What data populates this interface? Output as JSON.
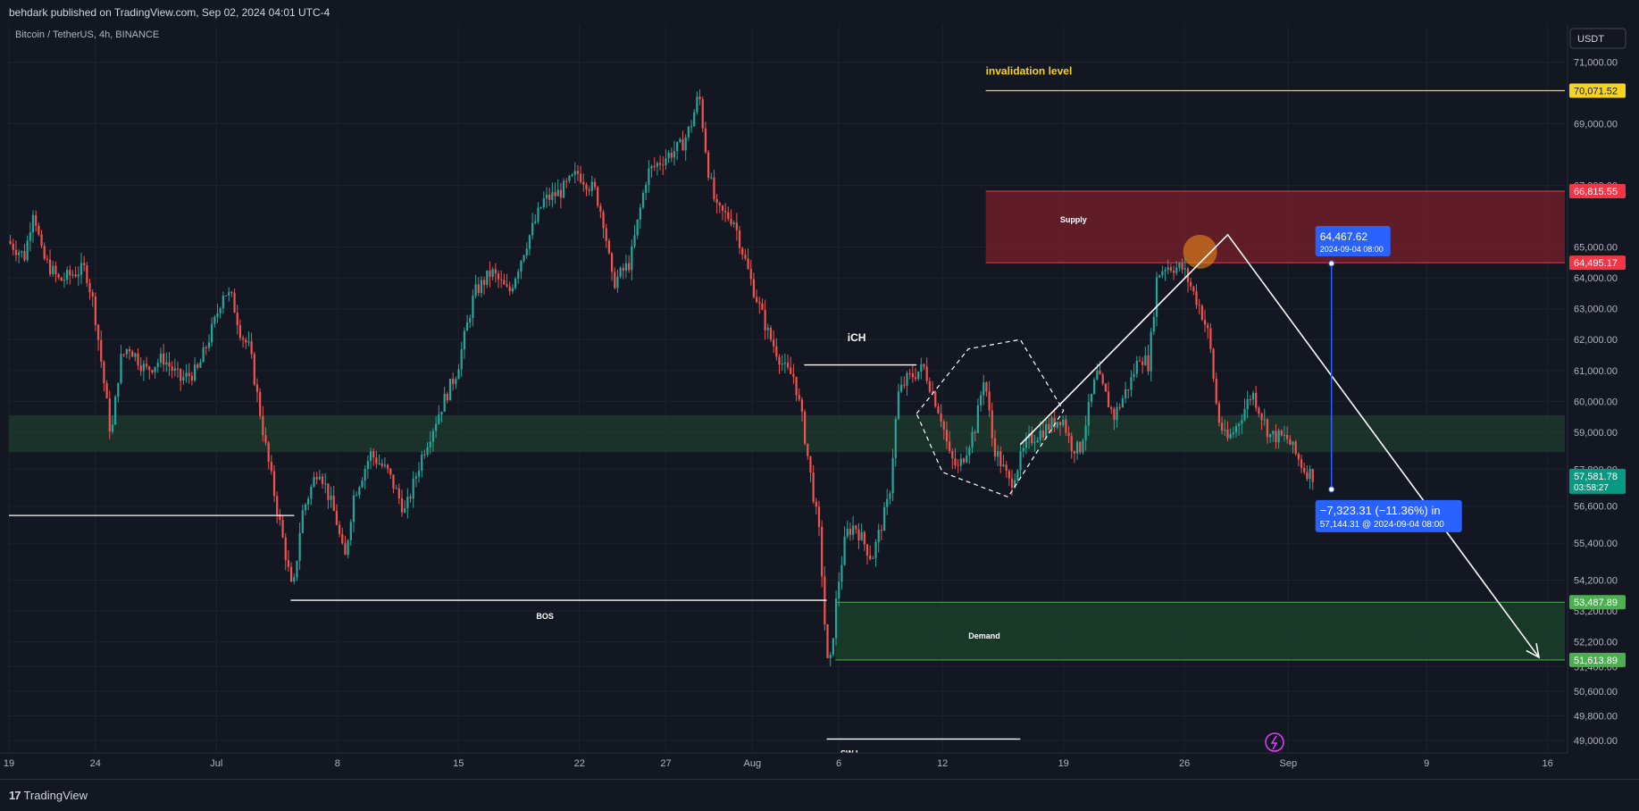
{
  "header": {
    "publisher_line": "behdark published on TradingView.com, Sep 02, 2024 04:01 UTC-4"
  },
  "footer": {
    "logo_mark": "17",
    "logo_text": "TradingView"
  },
  "chart_data": {
    "type": "candlestick",
    "symbol_line": "Bitcoin / TetherUS, 4h, BINANCE",
    "currency": "USDT",
    "y_axis": {
      "min": 48600,
      "max": 72200,
      "ticks": [
        "71,000.00",
        "69,000.00",
        "67,000.00",
        "65,000.00",
        "64,000.00",
        "63,000.00",
        "62,000.00",
        "61,000.00",
        "60,000.00",
        "59,000.00",
        "57,800.00",
        "56,600.00",
        "55,400.00",
        "54,200.00",
        "53,200.00",
        "52,200.00",
        "51,400.00",
        "50,600.00",
        "49,800.00",
        "49,000.00"
      ],
      "tick_values": [
        71000,
        69000,
        67000,
        65000,
        64000,
        63000,
        62000,
        61000,
        60000,
        59000,
        57800,
        56600,
        55400,
        54200,
        53200,
        52200,
        51400,
        50600,
        49800,
        49000
      ]
    },
    "x_axis": {
      "min_day": 0,
      "max_day": 90,
      "ticks": [
        {
          "label": "19",
          "day": 0
        },
        {
          "label": "24",
          "day": 5
        },
        {
          "label": "Jul",
          "day": 12
        },
        {
          "label": "8",
          "day": 19
        },
        {
          "label": "15",
          "day": 26
        },
        {
          "label": "22",
          "day": 33
        },
        {
          "label": "27",
          "day": 38
        },
        {
          "label": "Aug",
          "day": 43
        },
        {
          "label": "6",
          "day": 48
        },
        {
          "label": "12",
          "day": 54
        },
        {
          "label": "19",
          "day": 61
        },
        {
          "label": "26",
          "day": 68
        },
        {
          "label": "Sep",
          "day": 74
        },
        {
          "label": "9",
          "day": 82
        },
        {
          "label": "16",
          "day": 89
        }
      ]
    },
    "price_path": [
      [
        0,
        65200
      ],
      [
        1,
        64700
      ],
      [
        1.5,
        66300
      ],
      [
        2,
        64700
      ],
      [
        3,
        63900
      ],
      [
        4,
        64200
      ],
      [
        4.5,
        64300
      ],
      [
        5,
        63100
      ],
      [
        6,
        58800
      ],
      [
        6.5,
        61300
      ],
      [
        7,
        61800
      ],
      [
        8,
        61000
      ],
      [
        9,
        61400
      ],
      [
        10,
        60700
      ],
      [
        11,
        61000
      ],
      [
        12,
        62600
      ],
      [
        12.5,
        63600
      ],
      [
        13,
        63300
      ],
      [
        13.5,
        62200
      ],
      [
        14,
        61700
      ],
      [
        14.5,
        60000
      ],
      [
        15,
        58300
      ],
      [
        16,
        55300
      ],
      [
        16.5,
        53700
      ],
      [
        17,
        56300
      ],
      [
        18,
        57900
      ],
      [
        19,
        56200
      ],
      [
        19.5,
        54800
      ],
      [
        20,
        56900
      ],
      [
        21,
        58300
      ],
      [
        22,
        57700
      ],
      [
        23,
        56400
      ],
      [
        24,
        58300
      ],
      [
        25,
        59700
      ],
      [
        26,
        61000
      ],
      [
        27,
        63500
      ],
      [
        28,
        64200
      ],
      [
        29,
        63500
      ],
      [
        30,
        65100
      ],
      [
        31,
        66500
      ],
      [
        32,
        66800
      ],
      [
        33,
        67400
      ],
      [
        34,
        66800
      ],
      [
        34.5,
        65800
      ],
      [
        35,
        63800
      ],
      [
        36,
        64500
      ],
      [
        37,
        67400
      ],
      [
        38,
        67900
      ],
      [
        39,
        68300
      ],
      [
        39.5,
        68900
      ],
      [
        40,
        70000
      ],
      [
        40.5,
        67600
      ],
      [
        41,
        66200
      ],
      [
        42,
        65900
      ],
      [
        43,
        63900
      ],
      [
        44,
        62200
      ],
      [
        45,
        61000
      ],
      [
        45.5,
        60800
      ],
      [
        46,
        59300
      ],
      [
        47,
        55500
      ],
      [
        47.3,
        52500
      ],
      [
        47.5,
        51000
      ],
      [
        48,
        53900
      ],
      [
        48.5,
        55700
      ],
      [
        49,
        56000
      ],
      [
        50,
        54900
      ],
      [
        51,
        56900
      ],
      [
        51.5,
        60200
      ],
      [
        52,
        60700
      ],
      [
        53,
        61100
      ],
      [
        54,
        59500
      ],
      [
        54.5,
        58200
      ],
      [
        55,
        57800
      ],
      [
        56,
        59200
      ],
      [
        56.5,
        60900
      ],
      [
        57,
        58600
      ],
      [
        58,
        57300
      ],
      [
        59,
        58700
      ],
      [
        60,
        59100
      ],
      [
        61,
        59500
      ],
      [
        61.5,
        58600
      ],
      [
        62,
        58400
      ],
      [
        63,
        60900
      ],
      [
        64,
        59500
      ],
      [
        65,
        60700
      ],
      [
        65.5,
        61500
      ],
      [
        66,
        61200
      ],
      [
        66.5,
        64100
      ],
      [
        67,
        64400
      ],
      [
        68,
        64300
      ],
      [
        69,
        63000
      ],
      [
        69.5,
        62100
      ],
      [
        70,
        59500
      ],
      [
        70.5,
        58700
      ],
      [
        71,
        59100
      ],
      [
        72,
        60300
      ],
      [
        73,
        58900
      ],
      [
        74,
        58800
      ],
      [
        75,
        57800
      ],
      [
        75.5,
        57600
      ]
    ],
    "zones": [
      {
        "name": "Supply",
        "from_day": 56.5,
        "to_day": 90,
        "top": 66815.55,
        "bottom": 64495.17,
        "color": "#8b1e2b"
      },
      {
        "name": "Demand",
        "from_day": 47.8,
        "to_day": 90,
        "top": 53487.89,
        "bottom": 51613.89,
        "color": "#1c4a2c"
      },
      {
        "name": "",
        "from_day": 0,
        "to_day": 90,
        "top": 59550,
        "bottom": 58350,
        "color": "#1f4030"
      }
    ],
    "levels": [
      {
        "label": "invalidation level",
        "value": 70071.52,
        "from_day": 56.5,
        "to_day": 90,
        "color": "#f5d320"
      },
      {
        "label": "iCH",
        "value": 61180,
        "from_day": 46,
        "to_day": 52.5,
        "color": "#ffffff"
      },
      {
        "label": "BOS",
        "value": 53550,
        "from_day": 16.3,
        "to_day": 47.3,
        "color": "#ffffff"
      },
      {
        "label": "SW L",
        "value": 49050,
        "from_day": 47.3,
        "to_day": 58.5,
        "color": "#ffffff"
      },
      {
        "label": "",
        "value": 56300,
        "from_day": 0,
        "to_day": 16.5,
        "color": "#ffffff"
      }
    ],
    "price_tags": [
      {
        "value": 70071.52,
        "label": "70,071.52",
        "bg": "#f5d320",
        "fg": "#131722"
      },
      {
        "value": 66815.55,
        "label": "66,815.55",
        "bg": "#f23645",
        "fg": "#ffffff"
      },
      {
        "value": 64495.17,
        "label": "64,495.17",
        "bg": "#f23645",
        "fg": "#ffffff"
      },
      {
        "value": 57581.78,
        "label": "57,581.78",
        "sub": "03:58:27",
        "bg": "#089981",
        "fg": "#ffffff"
      },
      {
        "value": 53487.89,
        "label": "53,487.89",
        "bg": "#4caf50",
        "fg": "#ffffff"
      },
      {
        "value": 51613.89,
        "label": "51,613.89",
        "bg": "#4caf50",
        "fg": "#ffffff"
      }
    ],
    "measure": {
      "day": 76.5,
      "from_value": 64467.62,
      "to_value": 57144.31,
      "start_label": "64,467.62",
      "start_date": "2024-09-04 08:00",
      "result_label": "−7,323.31 (−11.36%) in",
      "result_sub": "57,144.31 @ 2024-09-04  08:00",
      "color": "#2962ff"
    },
    "projection": {
      "points": [
        [
          58.5,
          58600
        ],
        [
          70.5,
          65400
        ],
        [
          88.5,
          51700
        ]
      ],
      "color": "#ffffff"
    },
    "pattern": {
      "points": [
        [
          52.5,
          59600
        ],
        [
          55.5,
          61700
        ],
        [
          58.5,
          62000
        ],
        [
          61,
          59700
        ],
        [
          57.8,
          56900
        ],
        [
          54,
          57700
        ]
      ],
      "color": "#ffffff"
    },
    "highlight": {
      "day": 68.9,
      "value": 64850,
      "color": "#f7931a"
    },
    "annotations": [
      {
        "text": "invalidation level",
        "day": 56.5,
        "value": 70600,
        "color": "#f5d320"
      },
      {
        "text": "Supply",
        "day": 60.8,
        "value": 65800,
        "color": "#ffffff"
      },
      {
        "text": "iCH",
        "day": 48.5,
        "value": 61950,
        "color": "#ffffff"
      },
      {
        "text": "BOS",
        "day": 30.5,
        "value": 52950,
        "color": "#ffffff"
      },
      {
        "text": "Demand",
        "day": 55.5,
        "value": 52300,
        "color": "#ffffff"
      },
      {
        "text": "SW L",
        "day": 48.1,
        "value": 48500,
        "color": "#ffffff"
      }
    ],
    "colors": {
      "up": "#26a69a",
      "down": "#ef5350",
      "grid": "#1e222d",
      "axis_text": "#b2b5be",
      "background": "#131722"
    }
  }
}
